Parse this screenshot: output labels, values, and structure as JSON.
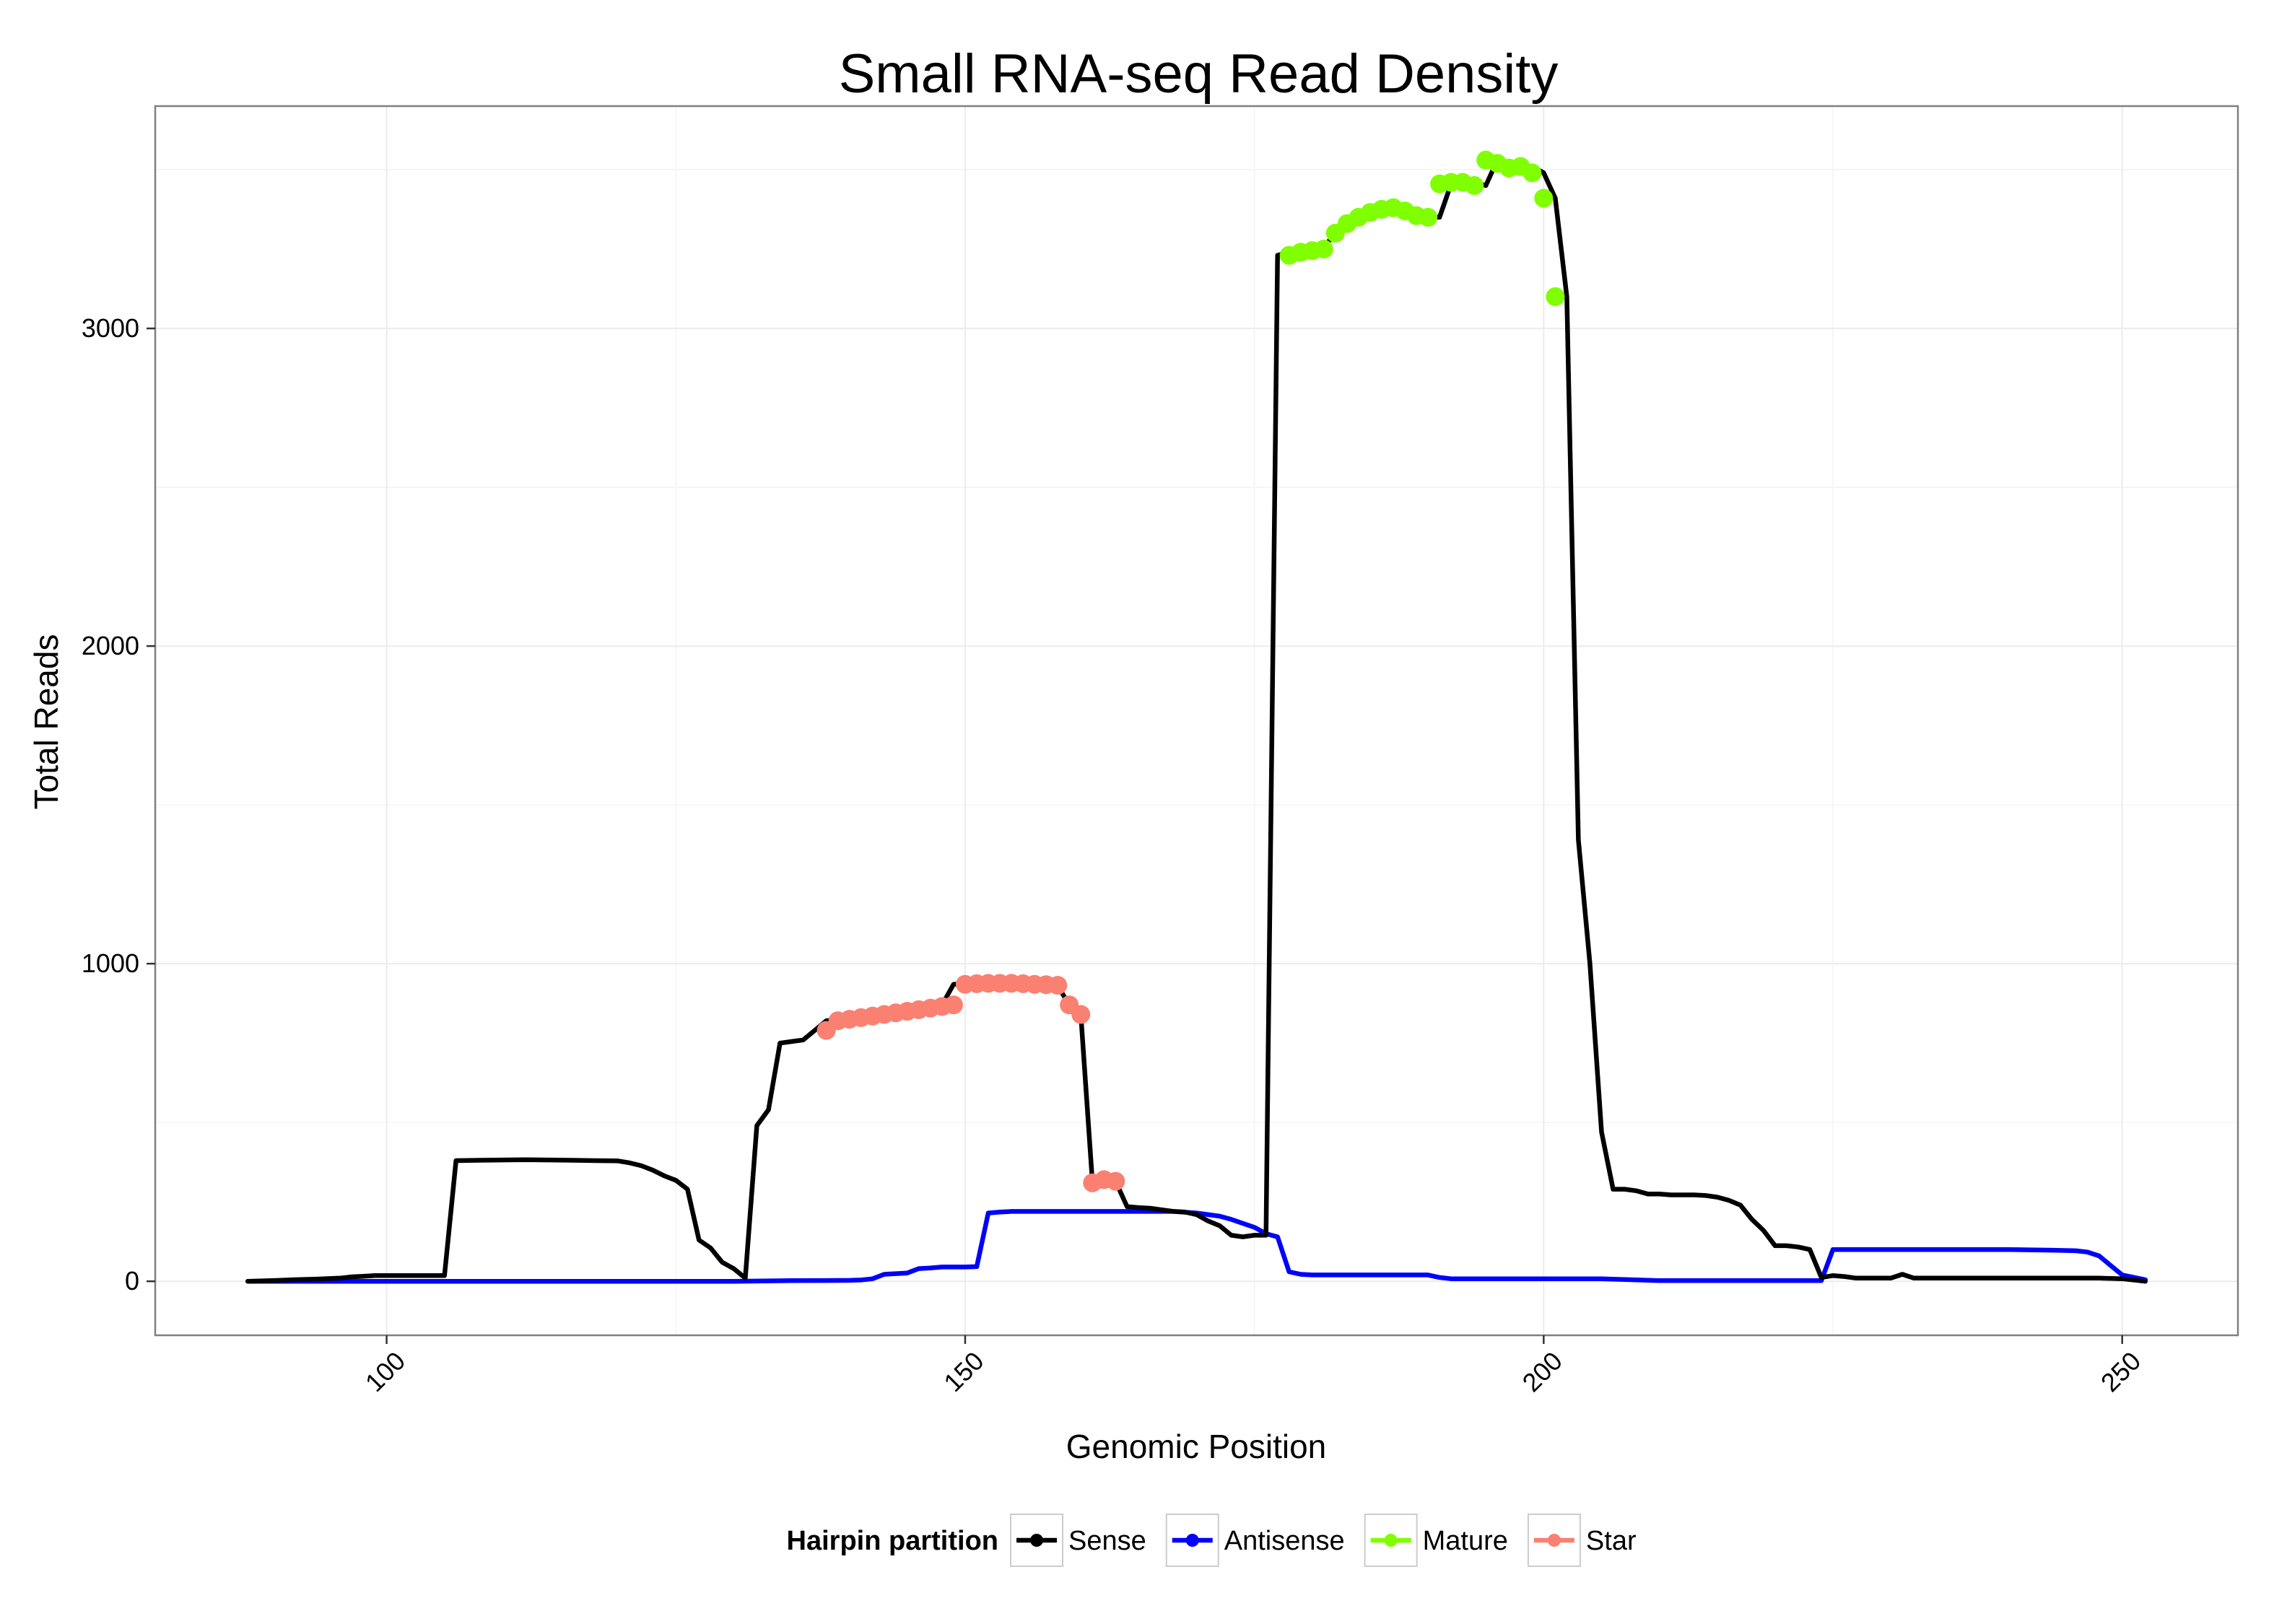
{
  "chart_data": {
    "type": "line",
    "title": "Small RNA-seq Read Density",
    "xlabel": "Genomic Position",
    "ylabel": "Total Reads",
    "xlim": [
      80,
      260
    ],
    "ylim": [
      -170,
      3700
    ],
    "x_ticks": [
      100,
      150,
      200,
      250
    ],
    "y_ticks": [
      0,
      1000,
      2000,
      3000
    ],
    "grid": true,
    "legend": {
      "title": "Hairpin partition",
      "position": "bottom"
    },
    "series": [
      {
        "name": "Sense",
        "color": "#000000",
        "style": "line",
        "x": [
          88,
          90,
          92,
          94,
          96,
          97,
          98,
          99,
          100,
          102,
          104,
          105,
          106,
          108,
          110,
          112,
          114,
          116,
          118,
          120,
          121,
          122,
          123,
          124,
          125,
          126,
          127,
          128,
          129,
          130,
          131,
          132,
          133,
          134,
          135,
          136,
          137,
          138,
          139,
          140,
          141,
          142,
          143,
          144,
          145,
          146,
          147,
          148,
          149,
          150,
          151,
          152,
          153,
          154,
          155,
          156,
          157,
          158,
          159,
          160,
          161,
          162,
          163,
          164,
          165,
          166,
          167,
          168,
          169,
          170,
          171,
          172,
          173,
          174,
          175,
          176,
          177,
          178,
          179,
          180,
          181,
          182,
          183,
          184,
          185,
          186,
          187,
          188,
          189,
          190,
          191,
          192,
          193,
          194,
          195,
          196,
          197,
          198,
          199,
          200,
          201,
          202,
          203,
          204,
          205,
          206,
          207,
          208,
          209,
          210,
          211,
          212,
          213,
          214,
          215,
          216,
          217,
          218,
          219,
          220,
          221,
          222,
          223,
          224,
          225,
          226,
          227,
          228,
          229,
          230,
          231,
          232,
          234,
          236,
          238,
          240,
          242,
          244,
          246,
          248,
          250,
          252
        ],
        "y": [
          0,
          2,
          5,
          7,
          10,
          14,
          16,
          18,
          18,
          18,
          18,
          18,
          380,
          381,
          382,
          383,
          382,
          381,
          380,
          379,
          373,
          364,
          350,
          332,
          318,
          290,
          130,
          105,
          60,
          40,
          10,
          490,
          540,
          750,
          755,
          760,
          790,
          820,
          825,
          830,
          835,
          840,
          845,
          850,
          855,
          860,
          865,
          870,
          935,
          937,
          938,
          938,
          938,
          937,
          935,
          934,
          932,
          930,
          870,
          840,
          310,
          320,
          315,
          235,
          232,
          230,
          225,
          220,
          218,
          210,
          190,
          175,
          145,
          140,
          145,
          145,
          3230,
          3240,
          3245,
          3250,
          3255,
          3300,
          3330,
          3350,
          3365,
          3375,
          3380,
          3370,
          3355,
          3350,
          3350,
          3455,
          3460,
          3460,
          3450,
          3530,
          3520,
          3505,
          3510,
          3490,
          3410,
          3100,
          1390,
          1000,
          470,
          290,
          290,
          285,
          275,
          275,
          272,
          272,
          272,
          270,
          265,
          255,
          240,
          195,
          160,
          112,
          112,
          108,
          100,
          12,
          18,
          15,
          10,
          10,
          10,
          10,
          22,
          10,
          10,
          10,
          10,
          10,
          10,
          10,
          10,
          10,
          8,
          0
        ]
      },
      {
        "name": "Antisense",
        "color": "#0000ff",
        "style": "line",
        "x": [
          88,
          95,
          100,
          105,
          110,
          115,
          120,
          125,
          130,
          135,
          140,
          141,
          142,
          143,
          144,
          145,
          146,
          147,
          148,
          149,
          150,
          151,
          152,
          153,
          154,
          155,
          160,
          165,
          168,
          170,
          172,
          173,
          175,
          176,
          177,
          178,
          179,
          180,
          185,
          190,
          191,
          192,
          195,
          200,
          205,
          210,
          215,
          220,
          224,
          225,
          230,
          235,
          240,
          244,
          246,
          247,
          248,
          249,
          250,
          252
        ],
        "y": [
          0,
          0,
          0,
          0,
          0,
          0,
          0,
          0,
          0,
          2,
          3,
          4,
          8,
          22,
          24,
          26,
          40,
          42,
          45,
          45,
          45,
          46,
          215,
          218,
          220,
          220,
          220,
          220,
          220,
          215,
          205,
          195,
          170,
          150,
          140,
          30,
          22,
          20,
          20,
          20,
          12,
          8,
          8,
          8,
          8,
          2,
          2,
          2,
          2,
          100,
          100,
          100,
          100,
          98,
          96,
          92,
          80,
          50,
          20,
          5
        ]
      },
      {
        "name": "Mature",
        "color": "#7fff00",
        "style": "points",
        "x": [
          178,
          179,
          180,
          181,
          182,
          183,
          184,
          185,
          186,
          187,
          188,
          189,
          190,
          191,
          192,
          193,
          194,
          195,
          196,
          197,
          198,
          199,
          200,
          201
        ],
        "y": [
          3230,
          3240,
          3245,
          3250,
          3300,
          3330,
          3350,
          3365,
          3375,
          3380,
          3370,
          3355,
          3350,
          3455,
          3460,
          3460,
          3450,
          3530,
          3520,
          3505,
          3510,
          3490,
          3410,
          3100
        ]
      },
      {
        "name": "Star",
        "color": "#fa8072",
        "style": "points",
        "x": [
          138,
          139,
          140,
          141,
          142,
          143,
          144,
          145,
          146,
          147,
          148,
          149,
          150,
          151,
          152,
          153,
          154,
          155,
          156,
          157,
          158,
          159,
          160,
          161,
          162,
          163
        ],
        "y": [
          790,
          820,
          825,
          830,
          835,
          840,
          845,
          850,
          855,
          860,
          865,
          870,
          935,
          937,
          938,
          938,
          938,
          937,
          935,
          934,
          932,
          870,
          840,
          310,
          320,
          315
        ]
      }
    ]
  }
}
